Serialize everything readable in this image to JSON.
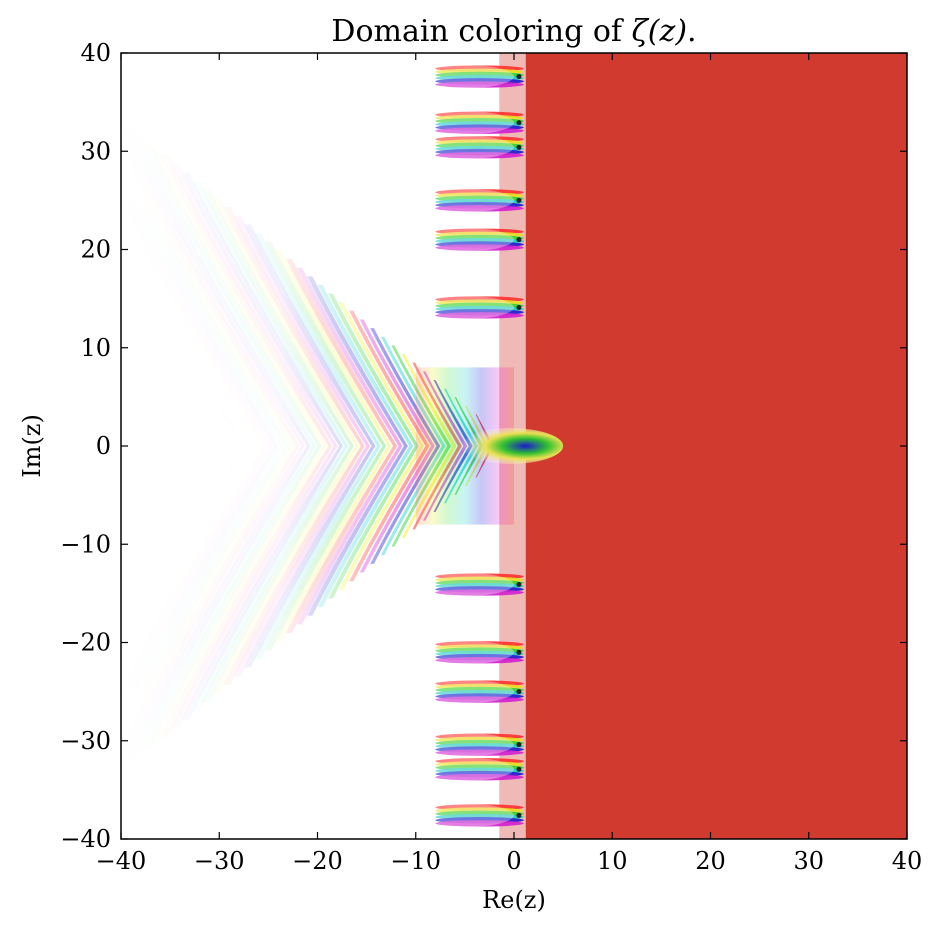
{
  "chart_data": {
    "type": "heatmap",
    "title_text": "Domain coloring of ",
    "title_math": "ζ(z)",
    "title_suffix": ".",
    "xlabel": "Re(z)",
    "ylabel": "Im(z)",
    "xlim": [
      -40,
      40
    ],
    "ylim": [
      -40,
      40
    ],
    "xticks": [
      -40,
      -30,
      -20,
      -10,
      0,
      10,
      20,
      30,
      40
    ],
    "yticks": [
      -40,
      -30,
      -20,
      -10,
      0,
      10,
      20,
      30,
      40
    ],
    "xtick_labels": [
      "−40",
      "−30",
      "−20",
      "−10",
      "0",
      "10",
      "20",
      "30",
      "40"
    ],
    "ytick_labels": [
      "−40",
      "−30",
      "−20",
      "−10",
      "0",
      "10",
      "20",
      "30",
      "40"
    ],
    "grid": false,
    "colormap": "hue = arg(ζ(z)), lightness from |ζ(z)|",
    "right_half_plane_color": "#d13a2e",
    "visible_zeros_im": [
      14.1,
      21.0,
      25.0,
      30.4,
      32.9,
      37.6,
      -14.1,
      -21.0,
      -25.0,
      -30.4,
      -32.9,
      -37.6
    ],
    "pole": [
      1,
      0
    ]
  }
}
